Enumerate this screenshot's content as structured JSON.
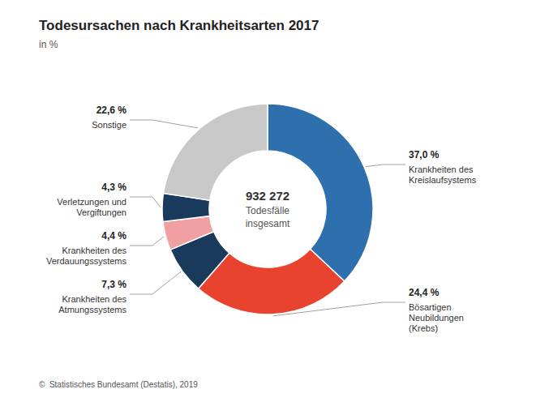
{
  "chart_data": {
    "type": "pie",
    "title": "Todesursachen nach Krankheitsarten 2017",
    "subtitle": "in %",
    "annotations": [
      "932 272",
      "Todesfälle",
      "insgesamt"
    ],
    "footer": "©  Statistisches Bundesamt (Destatis), 2019",
    "categories": [
      "Krankheiten des\nKreislaufsystems",
      "Bösartigen\nNeubildungen\n(Krebs)",
      "Krankheiten des\nAtmungssystems",
      "Krankheiten des\nVerdauungssystems",
      "Verletzungen und\nVergiftungen",
      "Sonstige"
    ],
    "values": [
      37.0,
      24.4,
      7.3,
      4.4,
      4.3,
      22.6
    ],
    "value_labels": [
      "37,0 %",
      "24,4 %",
      "7,3 %",
      "4,4 %",
      "4,3 %",
      "22,6 %"
    ],
    "colors": [
      "#2e6fad",
      "#e8432e",
      "#1a3a5c",
      "#f0a0a0",
      "#1a3a5c",
      "#c8c8c8"
    ],
    "data_labels": true
  }
}
